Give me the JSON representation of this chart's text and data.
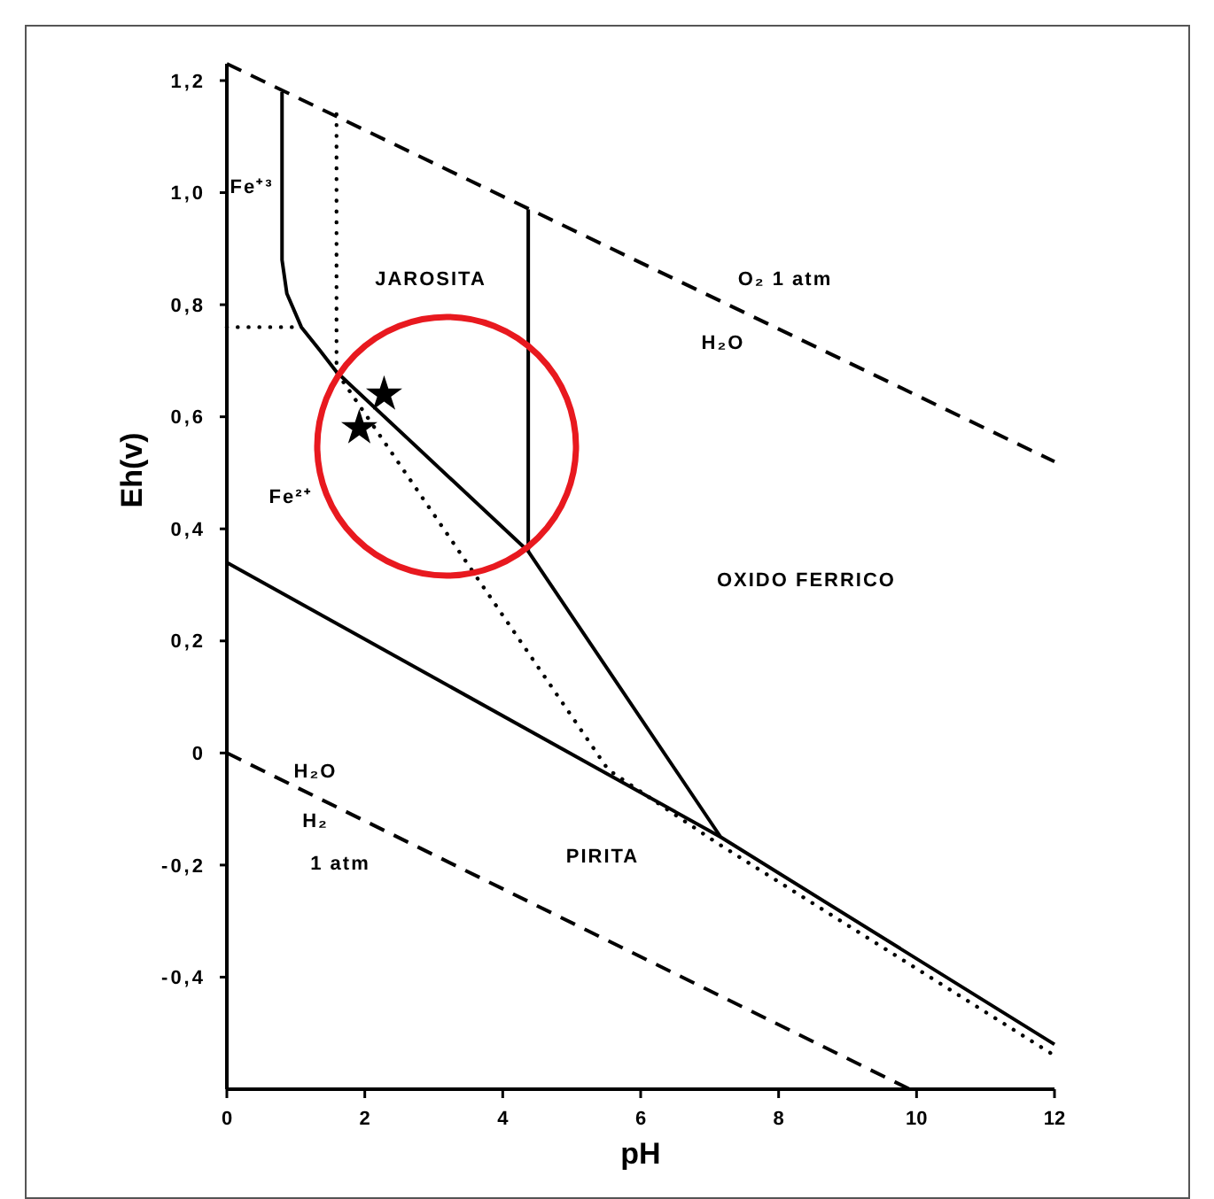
{
  "chart_data": {
    "type": "line",
    "xlabel": "pH",
    "ylabel": "Eh(v)",
    "xlim": [
      0,
      12
    ],
    "ylim": [
      -0.6,
      1.23
    ],
    "xticks": [
      0,
      2,
      4,
      6,
      8,
      10,
      12
    ],
    "yticks": [
      {
        "value": 1.2,
        "label": "1,2"
      },
      {
        "value": 1.0,
        "label": "1,0"
      },
      {
        "value": 0.8,
        "label": "0,8"
      },
      {
        "value": 0.6,
        "label": "0,6"
      },
      {
        "value": 0.4,
        "label": "0,4"
      },
      {
        "value": 0.2,
        "label": "0,2"
      },
      0,
      {
        "value": -0.2,
        "label": "-0,2"
      },
      {
        "value": -0.4,
        "label": "-0,4"
      }
    ],
    "series": [
      {
        "color": "#000000",
        "line_style": "dashed",
        "x": [
          0,
          12
        ],
        "values": [
          1.23,
          0.52
        ]
      },
      {
        "color": "#000000",
        "line_style": "dashed",
        "x": [
          0,
          9.9
        ],
        "values": [
          0,
          -0.6
        ]
      },
      {
        "color": "#000000",
        "line_style": "solid",
        "x": [
          0.8,
          0.8,
          0.87,
          1.08,
          1.34,
          1.59,
          4.37,
          7.16,
          12
        ],
        "values": [
          1.18,
          0.88,
          0.82,
          0.76,
          0.72,
          0.68,
          0.36,
          -0.15,
          -0.52
        ]
      },
      {
        "color": "#000000",
        "line_style": "solid",
        "x": [
          4.37,
          4.37
        ],
        "values": [
          0.97,
          0.36
        ]
      },
      {
        "color": "#000000",
        "line_style": "solid",
        "x": [
          0,
          7.16
        ],
        "values": [
          0.34,
          -0.15
        ]
      },
      {
        "color": "#000000",
        "line_style": "dotted",
        "x": [
          1.59,
          1.59,
          5.53,
          7.1,
          12
        ],
        "values": [
          1.14,
          0.68,
          -0.03,
          -0.16,
          -0.54
        ]
      },
      {
        "color": "#000000",
        "line_style": "dotted",
        "x": [
          0,
          1.08
        ],
        "values": [
          0.76,
          0.76
        ]
      },
      {
        "type": "scatter",
        "color": "#000000",
        "marker": "star",
        "x": [
          2.28,
          1.92
        ],
        "values": [
          0.64,
          0.58
        ]
      }
    ],
    "annotations": [
      "Fe⁺³",
      "JAROSITA",
      "Fe²⁺",
      "OXIDO FERRICO",
      "PIRITA",
      "O₂ 1 atm",
      "H₂O",
      "H₂O",
      "H₂",
      "1 atm"
    ]
  }
}
